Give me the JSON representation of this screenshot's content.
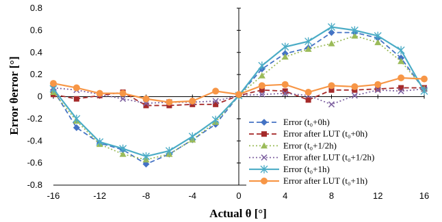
{
  "chart_data": {
    "type": "line",
    "title": "",
    "xlabel": "Actual θ [°]",
    "ylabel": "Error θerror [°]",
    "xlim": [
      -16,
      16
    ],
    "ylim": [
      -0.8,
      0.8
    ],
    "x_ticks": [
      "-16",
      "-12",
      "-8",
      "-4",
      "0",
      "4",
      "8",
      "12",
      "16"
    ],
    "y_ticks": [
      "0.8",
      "0.6",
      "0.4",
      "0.2",
      "0",
      "-0.2",
      "-0.4",
      "-0.6",
      "-0.8"
    ],
    "grid": "off",
    "legend_position": "bottom-right",
    "series": [
      {
        "name": "Error (t₀+0h)",
        "color": "#4472C4",
        "style": "dashed",
        "marker": "diamond",
        "x": [
          -16,
          -14,
          -12,
          -10,
          -8,
          -6,
          -4,
          -2,
          0,
          2,
          4,
          6,
          8,
          10,
          12,
          14,
          16
        ],
        "y": [
          0.06,
          -0.28,
          -0.42,
          -0.48,
          -0.61,
          -0.52,
          -0.39,
          -0.25,
          0.01,
          0.25,
          0.39,
          0.44,
          0.58,
          0.58,
          0.53,
          0.35,
          0.06
        ]
      },
      {
        "name": "Error after LUT (t₀+0h)",
        "color": "#A52A2A",
        "style": "dashed",
        "marker": "square",
        "x": [
          -16,
          -14,
          -12,
          -10,
          -8,
          -6,
          -4,
          -2,
          0,
          2,
          4,
          6,
          8,
          10,
          12,
          14,
          16
        ],
        "y": [
          0.02,
          -0.02,
          0.01,
          0.04,
          -0.08,
          -0.08,
          -0.07,
          -0.07,
          0.01,
          0.06,
          0.05,
          -0.03,
          0.06,
          0.06,
          0.07,
          0.08,
          0.08
        ]
      },
      {
        "name": "Error (t₀+1/2h)",
        "color": "#9BBB59",
        "style": "dotted",
        "marker": "triangle",
        "x": [
          -16,
          -14,
          -12,
          -10,
          -8,
          -6,
          -4,
          -2,
          0,
          2,
          4,
          6,
          8,
          10,
          12,
          14,
          16
        ],
        "y": [
          0.04,
          -0.22,
          -0.43,
          -0.52,
          -0.57,
          -0.52,
          -0.39,
          -0.23,
          0.01,
          0.19,
          0.36,
          0.43,
          0.48,
          0.55,
          0.49,
          0.32,
          0.07
        ]
      },
      {
        "name": "Error after LUT (t₀+1/2h)",
        "color": "#8064A2",
        "style": "dotted",
        "marker": "x",
        "x": [
          -16,
          -14,
          -12,
          -10,
          -8,
          -6,
          -4,
          -2,
          0,
          2,
          4,
          6,
          8,
          10,
          12,
          14,
          16
        ],
        "y": [
          0.08,
          0.06,
          0.02,
          -0.02,
          -0.06,
          -0.05,
          -0.05,
          -0.04,
          0.01,
          0.02,
          0.03,
          0.01,
          -0.07,
          0.01,
          0.06,
          0.05,
          0.07
        ]
      },
      {
        "name": "Error (t₀+1h)",
        "color": "#4BACC6",
        "style": "solid",
        "marker": "star",
        "x": [
          -16,
          -14,
          -12,
          -10,
          -8,
          -6,
          -4,
          -2,
          0,
          2,
          4,
          6,
          8,
          10,
          12,
          14,
          16
        ],
        "y": [
          0.07,
          -0.2,
          -0.41,
          -0.47,
          -0.54,
          -0.49,
          -0.36,
          -0.21,
          0.01,
          0.28,
          0.45,
          0.5,
          0.63,
          0.6,
          0.55,
          0.42,
          0.05
        ]
      },
      {
        "name": "Error after LUT (t₀+1h)",
        "color": "#F79646",
        "style": "solid",
        "marker": "circle",
        "x": [
          -16,
          -14,
          -12,
          -10,
          -8,
          -6,
          -4,
          -2,
          0,
          2,
          4,
          6,
          8,
          10,
          12,
          14,
          16
        ],
        "y": [
          0.12,
          0.08,
          0.03,
          0.03,
          -0.02,
          -0.05,
          -0.04,
          0.05,
          0.02,
          0.1,
          0.11,
          0.04,
          0.1,
          0.09,
          0.11,
          0.17,
          0.16
        ]
      }
    ]
  }
}
